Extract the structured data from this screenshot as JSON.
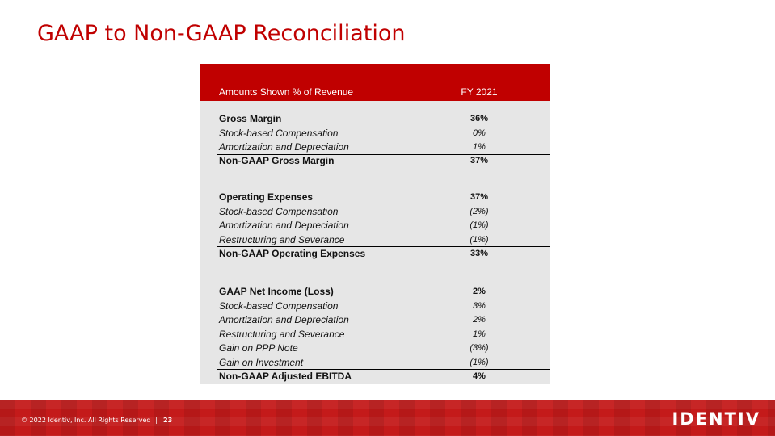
{
  "header": {
    "title": "GAAP to Non-GAAP Reconciliation"
  },
  "table": {
    "columns": [
      "Amounts Shown % of Revenue",
      "FY 2021"
    ],
    "sections": [
      {
        "rows": [
          [
            "Gross Margin",
            "36%"
          ],
          [
            "Stock-based Compensation",
            "0%"
          ],
          [
            "Amortization and Depreciation",
            "1%"
          ]
        ],
        "total": [
          "Non-GAAP Gross Margin",
          "37%"
        ]
      },
      {
        "rows": [
          [
            "Operating Expenses",
            "37%"
          ],
          [
            "Stock-based Compensation",
            "(2%)"
          ],
          [
            "Amortization and Depreciation",
            "(1%)"
          ],
          [
            "Restructuring and Severance",
            "(1%)"
          ]
        ],
        "total": [
          "Non-GAAP Operating Expenses",
          "33%"
        ]
      },
      {
        "rows": [
          [
            "GAAP Net Income (Loss)",
            "2%"
          ],
          [
            "Stock-based Compensation",
            "3%"
          ],
          [
            "Amortization and Depreciation",
            "2%"
          ],
          [
            "Restructuring and Severance",
            "1%"
          ],
          [
            "Gain on PPP Note",
            "(3%)"
          ],
          [
            "Gain on Investment",
            "(1%)"
          ]
        ],
        "total": [
          "Non-GAAP Adjusted EBITDA",
          "4%"
        ]
      }
    ]
  },
  "footer": {
    "copyright": "© 2022 Identiv, Inc. All Rights Reserved",
    "separator": "|",
    "page_number": "23",
    "logo": "IDENTIV"
  }
}
